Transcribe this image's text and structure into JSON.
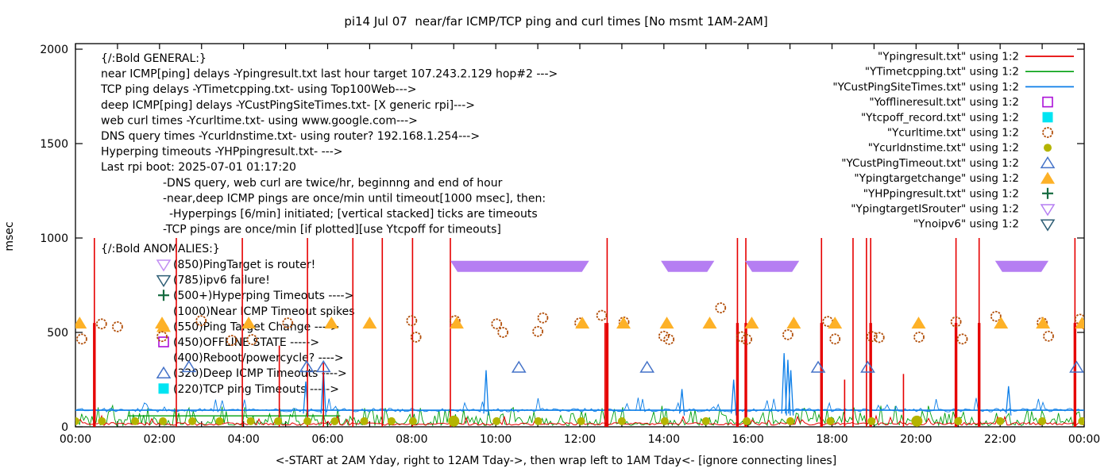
{
  "chart_data": {
    "type": "line",
    "title": "pi14 Jul 07  near/far ICMP/TCP ping and curl times [No msmt 1AM-2AM]",
    "ylabel": "msec",
    "xlabel": "<-START at 2AM Yday, right to 12AM Tday->, then wrap left to 1AM Tday<- [ignore connecting lines]",
    "ylim": [
      0,
      2000
    ],
    "y_ticks": [
      "0",
      "500",
      "1000",
      "1500",
      "2000"
    ],
    "x_ticks": [
      "00:00",
      "02:00",
      "04:00",
      "06:00",
      "08:00",
      "10:00",
      "12:00",
      "14:00",
      "16:00",
      "18:00",
      "20:00",
      "22:00",
      "00:00"
    ],
    "x_hours_span": 24,
    "grid": false,
    "legend_position": "top-right-inside",
    "series": [
      {
        "name": "near-icmp-ping",
        "legend_label": "\"Ypingresult.txt\" using 1:2",
        "color": "#e60000",
        "style": "line",
        "baseline_msec": 15,
        "timeout_value_msec": 1000,
        "timeout_spike_hours": [
          0.45,
          2.4,
          3.97,
          5.52,
          6.6,
          7.3,
          8.02,
          8.92,
          12.65,
          15.75,
          15.95,
          17.75,
          18.5,
          18.82,
          18.92,
          20.95,
          21.5,
          23.78
        ],
        "thick_lower_hours": [
          0.45,
          12.65,
          15.75,
          15.95,
          17.75,
          18.92,
          20.95,
          21.5,
          23.78
        ],
        "partial_spikes": [
          [
            4.85,
            430
          ],
          [
            5.9,
            340
          ],
          [
            12.6,
            550
          ],
          [
            18.3,
            250
          ],
          [
            19.7,
            280
          ]
        ]
      },
      {
        "name": "tcp-ping",
        "legend_label": "\"YTimetcpping.txt\" using 1:2",
        "color": "#00a010",
        "style": "noisy-line",
        "noise_range_msec": [
          5,
          100
        ],
        "flat_segment": {
          "from_hour": 1.25,
          "to_hour": 6.3,
          "value_msec": 58
        }
      },
      {
        "name": "deep-icmp-ping",
        "legend_label": "\"YCustPingSiteTimes.txt\" using 1:2",
        "color": "#0c7ee8",
        "style": "noisy-line",
        "baseline_msec": 88,
        "spikes": [
          [
            5.48,
            240
          ],
          [
            5.9,
            310
          ],
          [
            9.77,
            300
          ],
          [
            14.43,
            200
          ],
          [
            15.66,
            250
          ],
          [
            16.86,
            390
          ],
          [
            16.95,
            355
          ],
          [
            17.02,
            300
          ],
          [
            22.2,
            215
          ]
        ]
      },
      {
        "name": "offline-state",
        "legend_label": "\"Yofflineresult.txt\" using 1:2",
        "color": "#ab11d8",
        "style": "marker",
        "marker": "open-square",
        "points": []
      },
      {
        "name": "tcp-off-record",
        "legend_label": "\"Ytcpoff_record.txt\" using 1:2",
        "color": "#00e4f2",
        "style": "marker",
        "marker": "filled-square",
        "points": []
      },
      {
        "name": "web-curl-times",
        "legend_label": "\"Ycurltime.txt\" using 1:2",
        "color": "#b24f0a",
        "style": "marker",
        "marker": "open-circle",
        "points": [
          [
            0.15,
            465
          ],
          [
            0.62,
            545
          ],
          [
            1.0,
            530
          ],
          [
            2.06,
            478
          ],
          [
            2.99,
            562
          ],
          [
            3.72,
            458
          ],
          [
            4.2,
            462
          ],
          [
            5.05,
            550
          ],
          [
            8.0,
            562
          ],
          [
            8.1,
            475
          ],
          [
            9.03,
            562
          ],
          [
            10.02,
            545
          ],
          [
            10.17,
            500
          ],
          [
            11.0,
            505
          ],
          [
            11.12,
            577
          ],
          [
            12.0,
            550
          ],
          [
            12.52,
            590
          ],
          [
            13.05,
            555
          ],
          [
            14.0,
            480
          ],
          [
            14.12,
            463
          ],
          [
            15.35,
            630
          ],
          [
            15.85,
            477
          ],
          [
            15.97,
            463
          ],
          [
            16.95,
            488
          ],
          [
            17.9,
            558
          ],
          [
            18.07,
            465
          ],
          [
            18.95,
            478
          ],
          [
            19.12,
            473
          ],
          [
            20.07,
            475
          ],
          [
            20.95,
            556
          ],
          [
            21.1,
            465
          ],
          [
            21.9,
            585
          ],
          [
            23.0,
            552
          ],
          [
            23.15,
            480
          ],
          [
            23.9,
            570
          ],
          [
            24.05,
            540
          ]
        ]
      },
      {
        "name": "dns-query-times",
        "legend_label": "\"Ycurldnstime.txt\" using 1:2",
        "color": "#b4b400",
        "style": "marker",
        "marker": "filled-circle",
        "value_msec": 30,
        "times_hours": [
          0.0,
          0.63,
          1.42,
          2.08,
          2.78,
          3.43,
          4.17,
          4.82,
          5.52,
          6.17,
          6.87,
          7.52,
          8.03,
          9.0,
          10.02,
          11.01,
          12.03,
          13.0,
          14.02,
          15.0,
          15.97,
          17.01,
          17.96,
          18.94,
          20.02,
          21.0,
          22.0,
          23.0,
          23.95
        ],
        "large_dots_hours": [
          9.0,
          20.02
        ]
      },
      {
        "name": "deep-icmp-timeouts",
        "legend_label": "\"YCustPingTimeout.txt\" using 1:2",
        "color": "#4472c8",
        "style": "marker",
        "marker": "open-triangle-up",
        "points": [
          [
            2.7,
            318
          ],
          [
            5.5,
            318
          ],
          [
            5.9,
            318
          ],
          [
            10.55,
            315
          ],
          [
            13.6,
            315
          ],
          [
            17.67,
            315
          ],
          [
            18.85,
            315
          ],
          [
            23.82,
            315
          ]
        ]
      },
      {
        "name": "ping-target-change",
        "legend_label": "\"Ypingtargetchange\" using 1:2",
        "color": "#fdb127",
        "style": "marker",
        "marker": "filled-triangle-up",
        "value_msec": 550,
        "times_hours": [
          0.1,
          2.06,
          4.12,
          6.09,
          7.0,
          9.07,
          12.06,
          13.04,
          14.07,
          15.09,
          16.09,
          17.09,
          18.07,
          20.06,
          22.02,
          23.02,
          23.95
        ]
      },
      {
        "name": "hyperping-timeouts",
        "legend_label": "\"YHPpingresult.txt\" using 1:2",
        "color": "#156b3f",
        "style": "marker",
        "marker": "plus",
        "points": []
      },
      {
        "name": "ping-target-is-router",
        "legend_label": "\"YpingtargetISrouter\" using 1:2",
        "color": "#b57ef2",
        "style": "marker-band",
        "marker": "open-triangle-down",
        "value_msec": 850,
        "bands_hours": [
          [
            8.92,
            12.22
          ],
          [
            13.93,
            15.2
          ],
          [
            15.93,
            17.22
          ],
          [
            21.88,
            23.15
          ]
        ]
      },
      {
        "name": "no-ipv6",
        "legend_label": "\"Ynoipv6\" using 1:2",
        "color": "#2e5e75",
        "style": "marker",
        "marker": "open-triangle-down",
        "points": []
      }
    ],
    "annotations": {
      "general_lines": [
        {
          "indent": 0,
          "text": "{/:Bold GENERAL:}"
        },
        {
          "indent": 0,
          "text": "near ICMP[ping] delays -Ypingresult.txt last hour target 107.243.2.129 hop#2 --->"
        },
        {
          "indent": 0,
          "text": "TCP ping delays -YTimetcpping.txt- using Top100Web--->"
        },
        {
          "indent": 0,
          "text": "deep ICMP[ping] delays -YCustPingSiteTimes.txt- [X generic rpi]--->"
        },
        {
          "indent": 0,
          "text": "web curl times -Ycurltime.txt- using www.google.com--->"
        },
        {
          "indent": 0,
          "text": "DNS query times -Ycurldnstime.txt- using router? 192.168.1.254--->"
        },
        {
          "indent": 0,
          "text": "Hyperping timeouts -YHPpingresult.txt- --->"
        },
        {
          "indent": 0,
          "text": "Last rpi boot: 2025-07-01 01:17:20"
        },
        {
          "indent": 1,
          "text": "-DNS query, web curl are twice/hr, beginnng and end of hour"
        },
        {
          "indent": 1,
          "text": "-near,deep ICMP pings are once/min until timeout[1000 msec], then:"
        },
        {
          "indent": 2,
          "text": "-Hyperpings [6/min] initiated; [vertical stacked] ticks are timeouts"
        },
        {
          "indent": 1,
          "text": "-TCP pings are once/min [if plotted][use Ytcpoff for timeouts]"
        }
      ],
      "anomalies_header": "{/:Bold ANOMALIES:}",
      "anomalies": [
        {
          "marker": "open-triangle-down",
          "color": "#c18ef2",
          "text": "(850)PingTarget is router!"
        },
        {
          "marker": "open-triangle-down",
          "color": "#2e5e75",
          "text": "(785)ipv6 failure!"
        },
        {
          "marker": "plus",
          "color": "#156b3f",
          "text": "(500+)Hyperping Timeouts ---->"
        },
        {
          "marker": null,
          "color": null,
          "text": "(1000)Near ICMP Timeout spikes"
        },
        {
          "marker": "filled-triangle-up",
          "color": "#fdb127",
          "text": "(550)Ping Target Change ---->"
        },
        {
          "marker": "open-square",
          "color": "#ab11d8",
          "text": "(450)OFFLINE STATE ----->"
        },
        {
          "marker": null,
          "color": null,
          "text": "(400)Reboot/powercycle? ---->"
        },
        {
          "marker": "open-triangle-up",
          "color": "#4472c8",
          "text": "(320)Deep ICMP Timeouts ---->"
        },
        {
          "marker": "filled-square",
          "color": "#00e4f2",
          "text": "(220)TCP ping Timeouts ----->"
        }
      ]
    }
  }
}
